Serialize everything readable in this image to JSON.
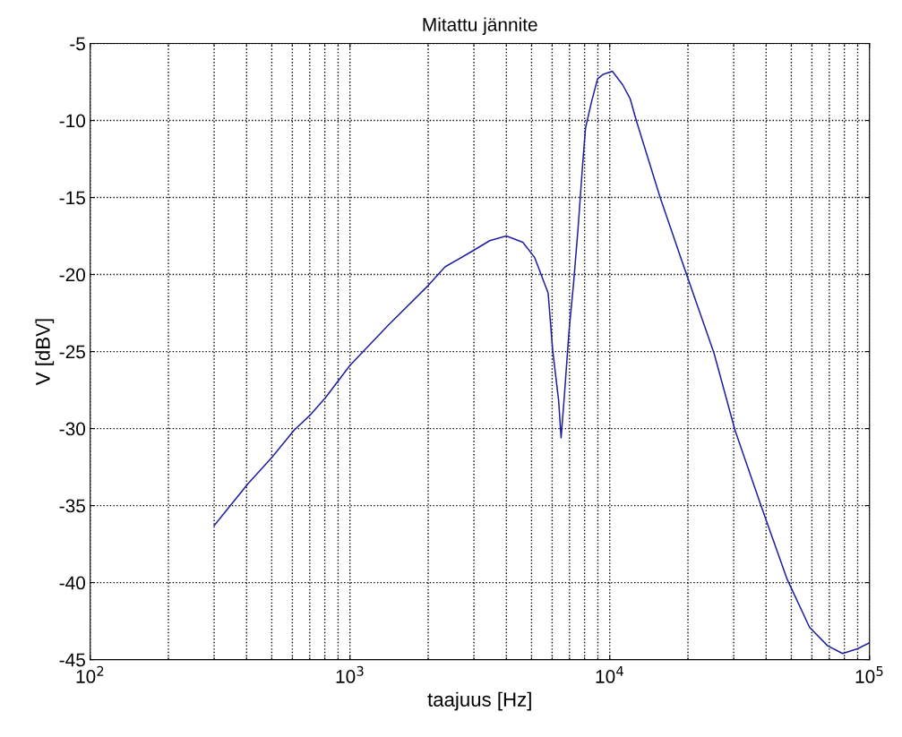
{
  "chart_data": {
    "type": "line",
    "title": "Mitattu jännite",
    "xlabel": "taajuus [Hz]",
    "ylabel": "V [dBV]",
    "log": "x",
    "grid": true,
    "line_style": "solid",
    "marker": "none",
    "x": [
      300,
      404,
      499,
      610,
      705,
      804,
      1000,
      1403,
      2004,
      2322,
      2945,
      3451,
      3997,
      4625,
      5142,
      5792,
      6029,
      6358,
      6496,
      6694,
      6967,
      7254,
      7551,
      7860,
      8066,
      8504,
      8974,
      9445,
      10230,
      11230,
      11990,
      12650,
      15630,
      19850,
      25190,
      30340,
      38020,
      48230,
      58770,
      68960,
      78700,
      89880,
      100000
    ],
    "series": [
      {
        "color": "#1f1fa0",
        "values": [
          -36.3,
          -33.6,
          -31.9,
          -30.1,
          -29.1,
          -28.0,
          -25.9,
          -23.3,
          -20.7,
          -19.5,
          -18.5,
          -17.8,
          -17.5,
          -17.9,
          -18.9,
          -21.2,
          -24.9,
          -28.2,
          -30.6,
          -27.8,
          -23.7,
          -20.6,
          -17.0,
          -12.9,
          -10.5,
          -8.8,
          -7.3,
          -7.0,
          -6.8,
          -7.7,
          -8.6,
          -10.0,
          -15.0,
          -20.1,
          -25.1,
          -30.1,
          -34.9,
          -39.8,
          -42.9,
          -44.1,
          -44.6,
          -44.3,
          -43.9
        ]
      }
    ],
    "xlim": [
      100,
      100000
    ],
    "xticks": [
      {
        "value": 100,
        "label": "10$^{2}$"
      },
      {
        "value": 1000,
        "label": "10$^{3}$"
      },
      {
        "value": 10000,
        "label": "10$^{4}$"
      },
      {
        "value": 100000,
        "label": "10$^{5}$"
      }
    ],
    "ylim": [
      -45,
      -5
    ],
    "yticks": [
      -45,
      -40,
      -35,
      -30,
      -25,
      -20,
      -15,
      -10,
      -5
    ]
  }
}
